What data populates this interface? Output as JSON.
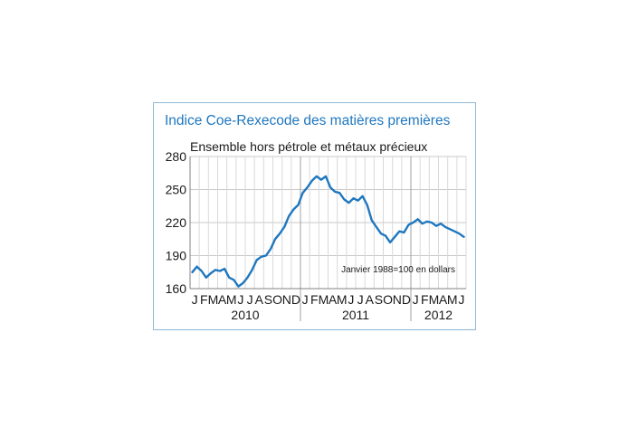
{
  "chart_data": {
    "type": "line",
    "title": "Indice Coe-Rexecode des matières premières",
    "subtitle": "Ensemble hors pétrole et métaux précieux",
    "annotation": "Janvier 1988=100 en dollars",
    "xlabel": "",
    "ylabel": "",
    "ylim": [
      160,
      280
    ],
    "yticks": [
      160,
      190,
      220,
      250,
      280
    ],
    "month_labels": [
      "J",
      "F",
      "M",
      "A",
      "M",
      "J",
      "J",
      "A",
      "S",
      "O",
      "N",
      "D",
      "J",
      "F",
      "M",
      "A",
      "M",
      "J",
      "J",
      "A",
      "S",
      "O",
      "N",
      "D",
      "J",
      "F",
      "M",
      "A",
      "M",
      "J"
    ],
    "years": [
      "2010",
      "2011",
      "2012"
    ],
    "grid": true,
    "line_color": "#1f77bf",
    "series": [
      {
        "x": [
          "2010-01",
          "2010-01",
          "2010-02",
          "2010-02",
          "2010-03",
          "2010-03",
          "2010-04",
          "2010-04",
          "2010-05",
          "2010-05",
          "2010-06",
          "2010-06",
          "2010-07",
          "2010-07",
          "2010-08",
          "2010-08",
          "2010-09",
          "2010-09",
          "2010-10",
          "2010-10",
          "2010-11",
          "2010-11",
          "2010-12",
          "2010-12",
          "2011-01",
          "2011-01",
          "2011-02",
          "2011-02",
          "2011-03",
          "2011-03",
          "2011-04",
          "2011-04",
          "2011-05",
          "2011-05",
          "2011-06",
          "2011-06",
          "2011-07",
          "2011-07",
          "2011-08",
          "2011-08",
          "2011-09",
          "2011-09",
          "2011-10",
          "2011-10",
          "2011-11",
          "2011-11",
          "2011-12",
          "2011-12",
          "2012-01",
          "2012-01",
          "2012-02",
          "2012-02",
          "2012-03",
          "2012-03",
          "2012-04",
          "2012-04",
          "2012-05",
          "2012-05",
          "2012-06",
          "2012-06"
        ],
        "values": [
          175,
          180,
          176,
          170,
          174,
          177,
          176,
          178,
          170,
          168,
          162,
          165,
          170,
          177,
          186,
          189,
          190,
          196,
          205,
          210,
          216,
          226,
          232,
          236,
          247,
          252,
          258,
          262,
          259,
          262,
          252,
          248,
          247,
          241,
          238,
          242,
          240,
          244,
          236,
          222,
          216,
          210,
          208,
          202,
          207,
          212,
          211,
          218,
          220,
          223,
          219,
          221,
          220,
          217,
          219,
          216,
          214,
          212,
          210,
          207
        ]
      }
    ]
  }
}
